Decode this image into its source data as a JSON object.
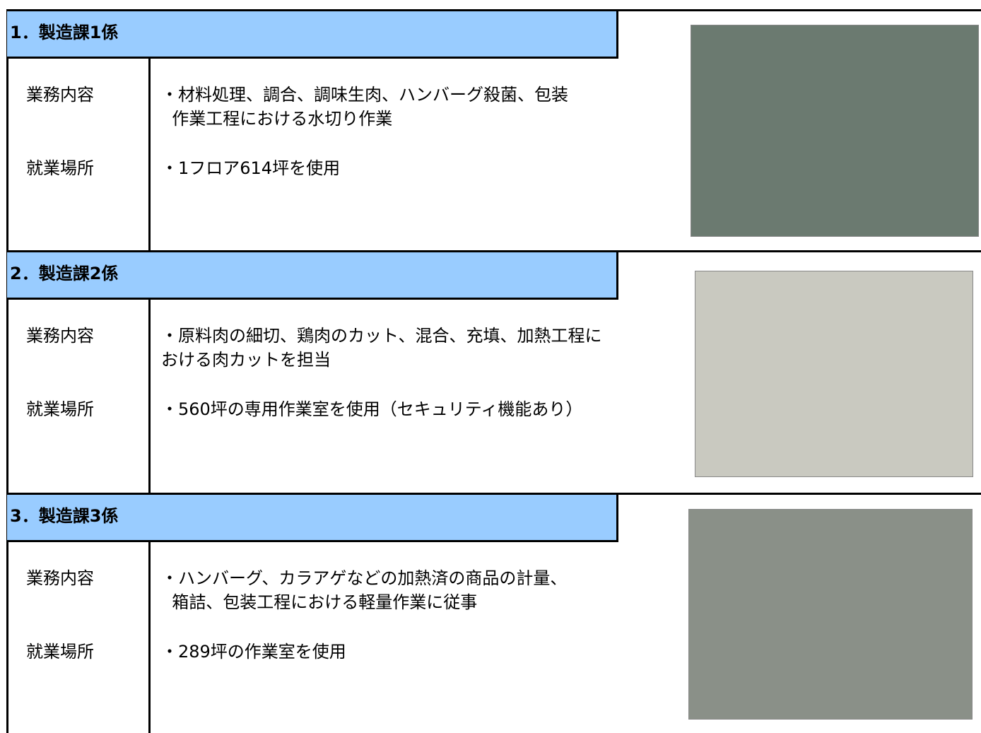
{
  "sections": [
    {
      "title": "1．製造課1係",
      "rows": [
        {
          "label": "業務内容",
          "lines": [
            "・材料処理、調合、調味生肉、ハンバーグ殺菌、包装",
            "  作業工程における水切り作業"
          ]
        },
        {
          "label": "就業場所",
          "lines": [
            "・1フロア614坪を使用"
          ]
        }
      ]
    },
    {
      "title": "2．製造課2係",
      "rows": [
        {
          "label": "業務内容",
          "lines": [
            "・原料肉の細切、鶏肉のカット、混合、充填、加熱工程に",
            "おける肉カットを担当"
          ]
        },
        {
          "label": "就業場所",
          "lines": [
            "・560坪の専用作業室を使用（セキュリティ機能あり）"
          ]
        }
      ]
    },
    {
      "title": "3．製造課3係",
      "rows": [
        {
          "label": "業務内容",
          "lines": [
            "・ハンバーグ、カラアゲなどの加熱済の商品の計量、",
            "  箱詰、包装工程における軽量作業に従事"
          ]
        },
        {
          "label": "就業場所",
          "lines": [
            "・289坪の作業室を使用"
          ]
        }
      ]
    }
  ]
}
